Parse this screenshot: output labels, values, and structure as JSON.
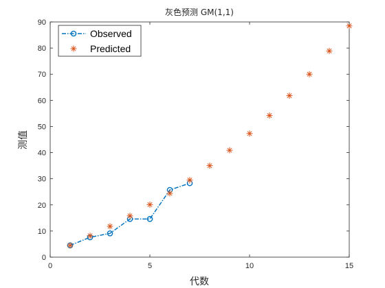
{
  "chart_data": {
    "type": "line",
    "title": "灰色预测 GM(1,1)",
    "xlabel": "代数",
    "ylabel": "测值",
    "xlim": [
      0,
      15
    ],
    "ylim": [
      0,
      90
    ],
    "xticks": [
      0,
      5,
      10,
      15
    ],
    "yticks": [
      0,
      10,
      20,
      30,
      40,
      50,
      60,
      70,
      80,
      90
    ],
    "grid": false,
    "legend_position": "top-left",
    "series": [
      {
        "name": "Observed",
        "kind": "line-marker",
        "color": "#0072BD",
        "x": [
          1,
          2,
          3,
          4,
          5,
          6,
          7
        ],
        "y": [
          4.5,
          7.6,
          9.1,
          14.6,
          14.6,
          25.7,
          28.3
        ]
      },
      {
        "name": "Predicted",
        "kind": "asterisk",
        "color": "#D95319",
        "x": [
          1,
          2,
          3,
          4,
          5,
          6,
          7,
          8,
          9,
          10,
          11,
          12,
          13,
          14,
          15
        ],
        "y": [
          4.5,
          8.2,
          11.8,
          15.8,
          20.1,
          24.4,
          29.5,
          35.0,
          40.9,
          47.3,
          54.2,
          61.8,
          70.0,
          78.9,
          88.5
        ]
      }
    ]
  }
}
